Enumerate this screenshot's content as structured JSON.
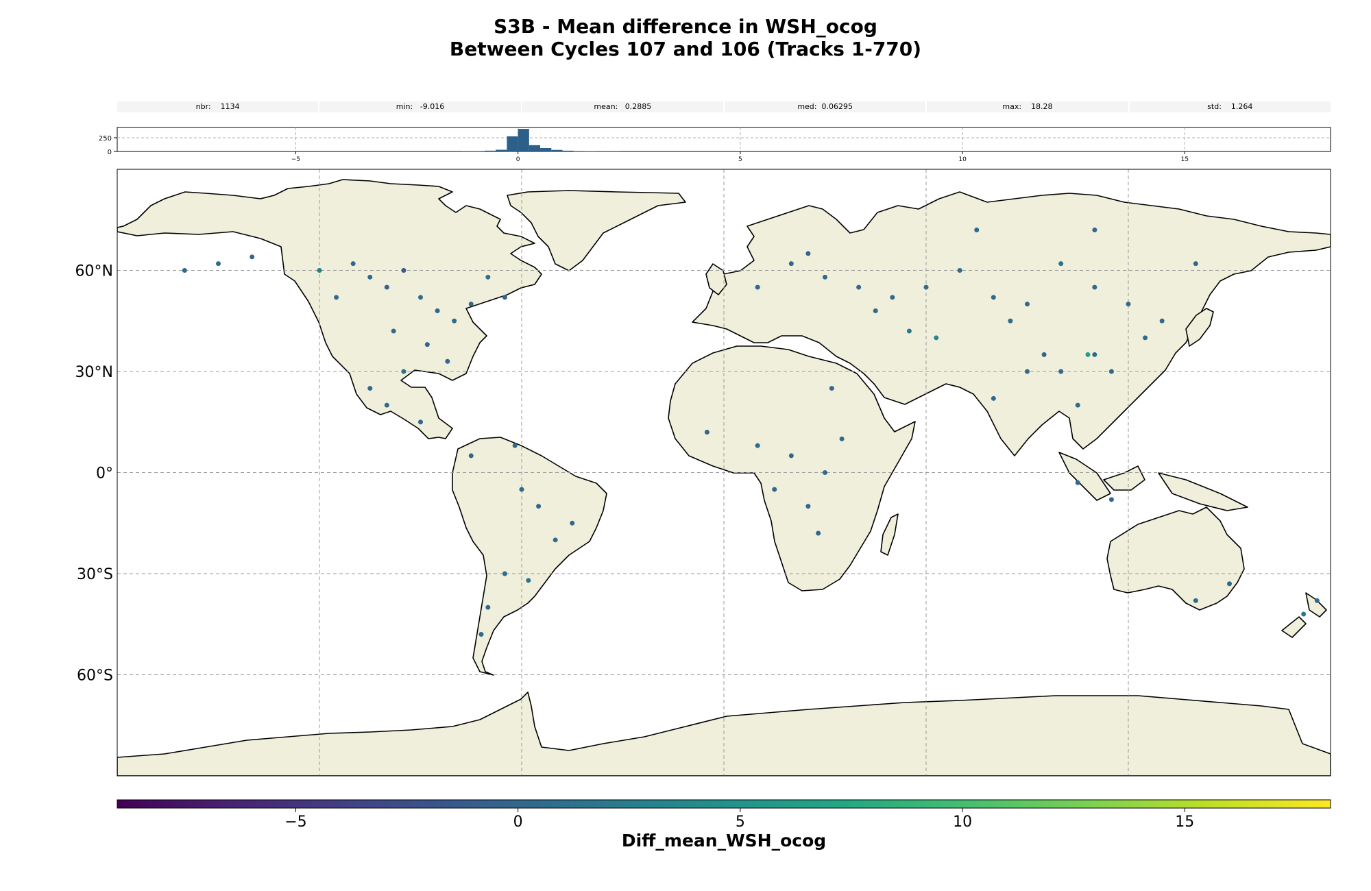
{
  "title": {
    "line1": "S3B - Mean difference in WSH_ocog",
    "line2": "Between Cycles 107 and 106 (Tracks 1-770)"
  },
  "stats": [
    {
      "label": "nbr:",
      "value": "1134"
    },
    {
      "label": "min:",
      "value": "-9.016"
    },
    {
      "label": "mean:",
      "value": "0.2885"
    },
    {
      "label": "med:",
      "value": "0.06295"
    },
    {
      "label": "max:",
      "value": "18.28"
    },
    {
      "label": "std:",
      "value": "1.264"
    }
  ],
  "histogram": {
    "ytick_labels": [
      "250",
      "0"
    ],
    "xtick_labels": [
      "−5",
      "0",
      "5",
      "10",
      "15"
    ],
    "xtick_values": [
      -5,
      0,
      5,
      10,
      15
    ],
    "xlim": [
      -9.016,
      18.28
    ],
    "ymax": 420,
    "bin_width": 0.25,
    "bins": [
      {
        "x": -1.25,
        "count": 3
      },
      {
        "x": -1.0,
        "count": 8
      },
      {
        "x": -0.75,
        "count": 14
      },
      {
        "x": -0.5,
        "count": 30
      },
      {
        "x": -0.25,
        "count": 265
      },
      {
        "x": 0.0,
        "count": 395
      },
      {
        "x": 0.25,
        "count": 110
      },
      {
        "x": 0.5,
        "count": 60
      },
      {
        "x": 0.75,
        "count": 28
      },
      {
        "x": 1.0,
        "count": 14
      },
      {
        "x": 1.25,
        "count": 8
      },
      {
        "x": 1.5,
        "count": 5
      },
      {
        "x": 1.75,
        "count": 3
      },
      {
        "x": 2.0,
        "count": 2
      }
    ],
    "bar_color": "#2c6089"
  },
  "map": {
    "lat_labels": [
      "60°N",
      "30°N",
      "0°",
      "30°S",
      "60°S"
    ],
    "lat_values": [
      60,
      30,
      0,
      -30,
      -60
    ],
    "lon_gridlines": [
      -120,
      -60,
      0,
      60,
      120
    ],
    "extent": {
      "lon": [
        -180,
        180
      ],
      "lat": [
        -90,
        90
      ]
    },
    "land_color": "#efefdb",
    "ocean_color": "#ffffff",
    "coast_color": "#000000",
    "points": [
      {
        "lon": -100,
        "lat": 55,
        "value": -0.5
      },
      {
        "lon": -105,
        "lat": 58,
        "value": 0.3
      },
      {
        "lon": -95,
        "lat": 60,
        "value": -1.2
      },
      {
        "lon": -110,
        "lat": 62,
        "value": 0.1
      },
      {
        "lon": -90,
        "lat": 52,
        "value": 0.6
      },
      {
        "lon": -85,
        "lat": 48,
        "value": -0.2
      },
      {
        "lon": -80,
        "lat": 45,
        "value": 0.4
      },
      {
        "lon": -75,
        "lat": 50,
        "value": 0.0
      },
      {
        "lon": -120,
        "lat": 60,
        "value": 2.5
      },
      {
        "lon": -115,
        "lat": 52,
        "value": 0.2
      },
      {
        "lon": -98,
        "lat": 42,
        "value": 0.5
      },
      {
        "lon": -88,
        "lat": 38,
        "value": -0.4
      },
      {
        "lon": -82,
        "lat": 33,
        "value": 0.2
      },
      {
        "lon": -95,
        "lat": 30,
        "value": 0.8
      },
      {
        "lon": -105,
        "lat": 25,
        "value": 0.1
      },
      {
        "lon": -100,
        "lat": 20,
        "value": 0.3
      },
      {
        "lon": -90,
        "lat": 15,
        "value": 0.2
      },
      {
        "lon": -150,
        "lat": 62,
        "value": 0.4
      },
      {
        "lon": -160,
        "lat": 60,
        "value": 0.1
      },
      {
        "lon": -140,
        "lat": 64,
        "value": 0.0
      },
      {
        "lon": -70,
        "lat": 58,
        "value": 1.1
      },
      {
        "lon": -65,
        "lat": 52,
        "value": -0.3
      },
      {
        "lon": -60,
        "lat": -5,
        "value": 0.3
      },
      {
        "lon": -55,
        "lat": -10,
        "value": 0.1
      },
      {
        "lon": -50,
        "lat": -20,
        "value": 0.4
      },
      {
        "lon": -45,
        "lat": -15,
        "value": 0.2
      },
      {
        "lon": -65,
        "lat": -30,
        "value": 0.6
      },
      {
        "lon": -70,
        "lat": -40,
        "value": 0.2
      },
      {
        "lon": -72,
        "lat": -48,
        "value": 0.3
      },
      {
        "lon": -58,
        "lat": -32,
        "value": 1.4
      },
      {
        "lon": -75,
        "lat": 5,
        "value": 0.1
      },
      {
        "lon": -62,
        "lat": 8,
        "value": 0.5
      },
      {
        "lon": -5,
        "lat": 12,
        "value": 0.2
      },
      {
        "lon": 10,
        "lat": 8,
        "value": 0.3
      },
      {
        "lon": 20,
        "lat": 5,
        "value": 0.1
      },
      {
        "lon": 30,
        "lat": 0,
        "value": 0.4
      },
      {
        "lon": 25,
        "lat": -10,
        "value": 0.2
      },
      {
        "lon": 28,
        "lat": -18,
        "value": 0.0
      },
      {
        "lon": 35,
        "lat": 10,
        "value": 0.6
      },
      {
        "lon": 32,
        "lat": 25,
        "value": 0.3
      },
      {
        "lon": 15,
        "lat": -5,
        "value": -0.2
      },
      {
        "lon": 10,
        "lat": 55,
        "value": 0.2
      },
      {
        "lon": 20,
        "lat": 62,
        "value": 0.1
      },
      {
        "lon": 25,
        "lat": 65,
        "value": -0.6
      },
      {
        "lon": 30,
        "lat": 58,
        "value": 0.3
      },
      {
        "lon": 40,
        "lat": 55,
        "value": 0.2
      },
      {
        "lon": 45,
        "lat": 48,
        "value": 0.5
      },
      {
        "lon": 50,
        "lat": 52,
        "value": 0.1
      },
      {
        "lon": 55,
        "lat": 42,
        "value": 1.6
      },
      {
        "lon": 60,
        "lat": 55,
        "value": 0.2
      },
      {
        "lon": 70,
        "lat": 60,
        "value": 0.3
      },
      {
        "lon": 80,
        "lat": 52,
        "value": 0.0
      },
      {
        "lon": 85,
        "lat": 45,
        "value": 0.4
      },
      {
        "lon": 90,
        "lat": 50,
        "value": 0.2
      },
      {
        "lon": 95,
        "lat": 35,
        "value": -0.3
      },
      {
        "lon": 100,
        "lat": 30,
        "value": 0.2
      },
      {
        "lon": 90,
        "lat": 30,
        "value": 0.5
      },
      {
        "lon": 110,
        "lat": 35,
        "value": 0.3
      },
      {
        "lon": 115,
        "lat": 30,
        "value": 0.1
      },
      {
        "lon": 105,
        "lat": 20,
        "value": 0.6
      },
      {
        "lon": 80,
        "lat": 22,
        "value": 0.2
      },
      {
        "lon": 100,
        "lat": 62,
        "value": 1.2
      },
      {
        "lon": 110,
        "lat": 55,
        "value": 0.3
      },
      {
        "lon": 120,
        "lat": 50,
        "value": 0.4
      },
      {
        "lon": 130,
        "lat": 45,
        "value": 0.2
      },
      {
        "lon": 140,
        "lat": 62,
        "value": 0.1
      },
      {
        "lon": 75,
        "lat": 72,
        "value": 0.3
      },
      {
        "lon": 110,
        "lat": 72,
        "value": 0.2
      },
      {
        "lon": 105,
        "lat": -3,
        "value": 0.4
      },
      {
        "lon": 115,
        "lat": -8,
        "value": 0.1
      },
      {
        "lon": 150,
        "lat": -33,
        "value": 0.3
      },
      {
        "lon": 140,
        "lat": -38,
        "value": 0.2
      },
      {
        "lon": 172,
        "lat": -42,
        "value": 2.0
      },
      {
        "lon": 176,
        "lat": -38,
        "value": 0.4
      },
      {
        "lon": 108,
        "lat": 35,
        "value": 6.0
      },
      {
        "lon": 63,
        "lat": 40,
        "value": 3.5
      },
      {
        "lon": 125,
        "lat": 40,
        "value": 0.3
      }
    ]
  },
  "colorbar": {
    "label": "Diff_mean_WSH_ocog",
    "tick_labels": [
      "−5",
      "0",
      "5",
      "10",
      "15"
    ],
    "tick_values": [
      -5,
      0,
      5,
      10,
      15
    ],
    "range": [
      -9.016,
      18.28
    ],
    "colormap": "viridis"
  }
}
